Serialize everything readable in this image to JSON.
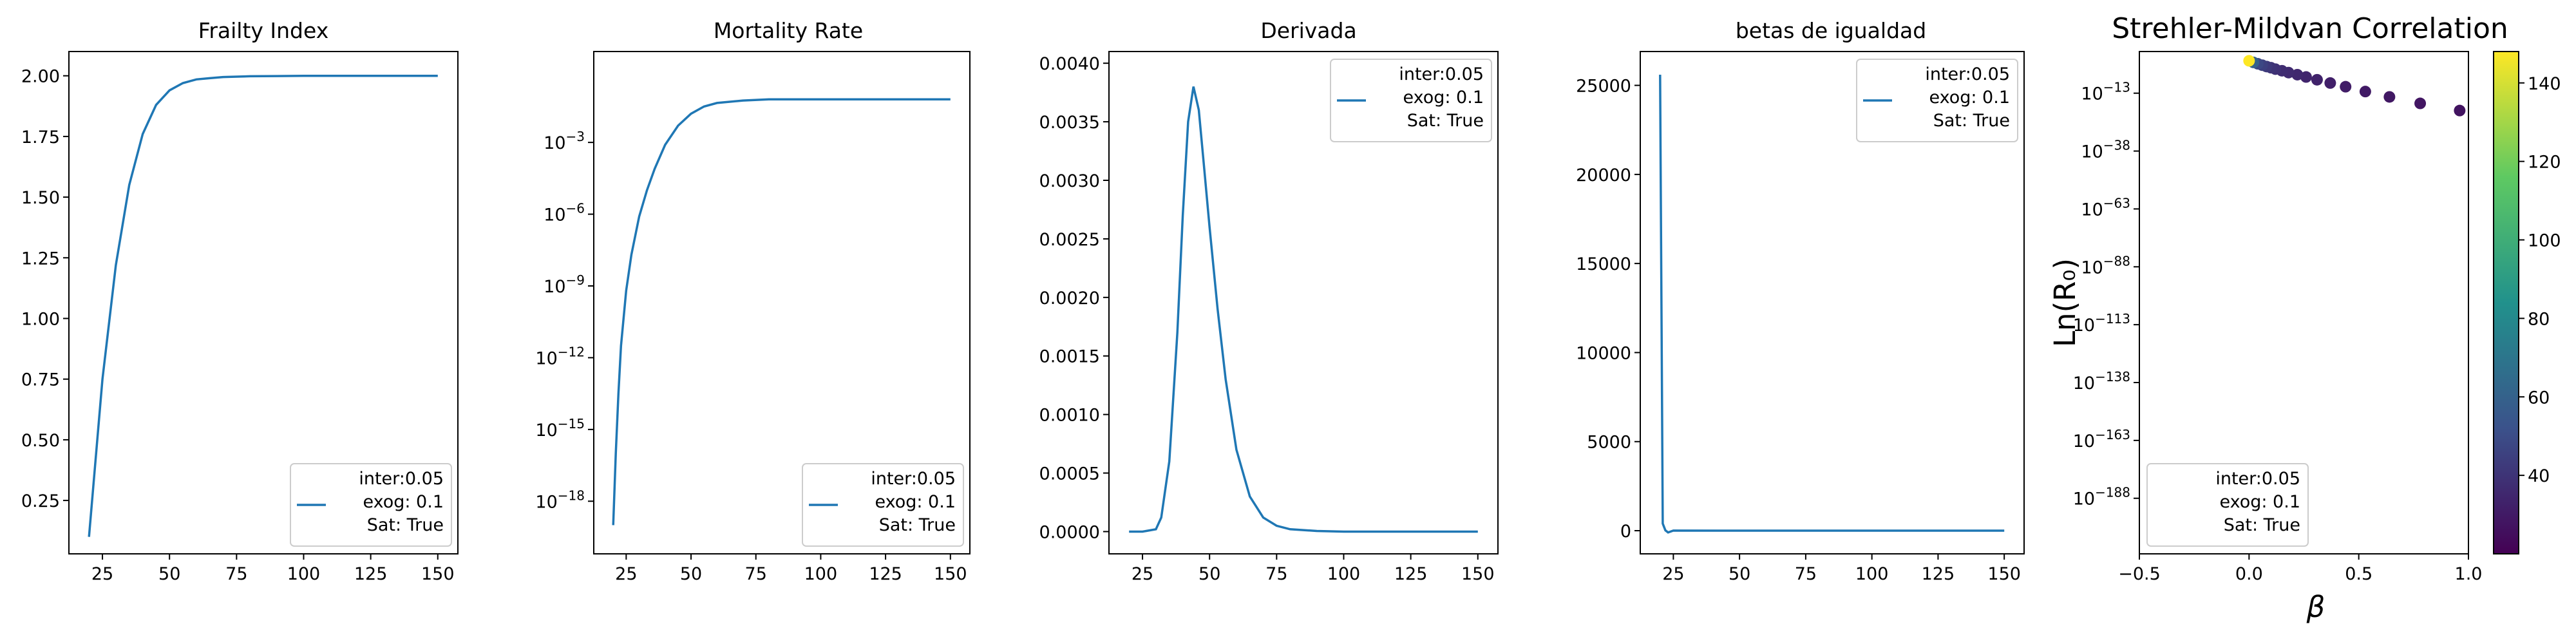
{
  "colors": {
    "line": "#1f77b4",
    "viridis": [
      "#440154",
      "#3b528b",
      "#21918c",
      "#5ec962",
      "#fde725"
    ]
  },
  "legend_lines": [
    "inter:0.05",
    "exog: 0.1",
    "Sat: True"
  ],
  "chart_data": [
    {
      "type": "line",
      "title": "Frailty Index",
      "xlim": [
        12.5,
        157.5
      ],
      "ylim": [
        0.03,
        2.1
      ],
      "xticks": [
        "25",
        "50",
        "75",
        "100",
        "125",
        "150"
      ],
      "yticks": [
        "0.25",
        "0.50",
        "0.75",
        "1.00",
        "1.25",
        "1.50",
        "1.75",
        "2.00"
      ],
      "legend_placement": "lower right",
      "series": [
        {
          "x": [
            20,
            25,
            30,
            35,
            40,
            45,
            50,
            55,
            60,
            65,
            70,
            80,
            90,
            100,
            125,
            150
          ],
          "values": [
            0.1,
            0.75,
            1.22,
            1.55,
            1.76,
            1.88,
            1.94,
            1.97,
            1.985,
            1.99,
            1.995,
            1.998,
            1.999,
            2.0,
            2.0,
            2.0
          ]
        }
      ]
    },
    {
      "type": "line",
      "title": "Mortality Rate",
      "scale_y": "log",
      "xlim": [
        12.5,
        157.5
      ],
      "ylim_exp": [
        -20.2,
        0.8
      ],
      "xticks": [
        "25",
        "50",
        "75",
        "100",
        "125",
        "150"
      ],
      "yticks_exp": [
        "-18",
        "-15",
        "-12",
        "-9",
        "-6",
        "-3"
      ],
      "legend_placement": "lower right",
      "series": [
        {
          "x": [
            20,
            21,
            22,
            23,
            25,
            27,
            30,
            33,
            36,
            40,
            45,
            50,
            55,
            60,
            70,
            80,
            100,
            150
          ],
          "log10_values": [
            -19.0,
            -16.0,
            -13.5,
            -11.5,
            -9.2,
            -7.7,
            -6.1,
            -5.0,
            -4.1,
            -3.1,
            -2.3,
            -1.8,
            -1.5,
            -1.35,
            -1.25,
            -1.2,
            -1.2,
            -1.2
          ]
        }
      ]
    },
    {
      "type": "line",
      "title": "Derivada",
      "xlim": [
        12.5,
        157.5
      ],
      "ylim": [
        -0.00019,
        0.0041
      ],
      "xticks": [
        "25",
        "50",
        "75",
        "100",
        "125",
        "150"
      ],
      "yticks": [
        "0.0000",
        "0.0005",
        "0.0010",
        "0.0015",
        "0.0020",
        "0.0025",
        "0.0030",
        "0.0035",
        "0.0040"
      ],
      "legend_placement": "upper right",
      "series": [
        {
          "x": [
            20,
            25,
            30,
            32,
            35,
            38,
            40,
            42,
            44,
            46,
            48,
            50,
            53,
            56,
            60,
            65,
            70,
            75,
            80,
            90,
            100,
            110,
            125,
            150
          ],
          "values": [
            0.0,
            0.0,
            2e-05,
            0.00012,
            0.0006,
            0.0017,
            0.0027,
            0.0035,
            0.0038,
            0.0036,
            0.0031,
            0.0026,
            0.0019,
            0.0013,
            0.0007,
            0.0003,
            0.00012,
            5e-05,
            2e-05,
            5e-06,
            0.0,
            0.0,
            0.0,
            0.0
          ]
        }
      ]
    },
    {
      "type": "line",
      "title": "betas de igualdad",
      "xlim": [
        12.5,
        157.5
      ],
      "ylim": [
        -1300,
        26900
      ],
      "xticks": [
        "25",
        "50",
        "75",
        "100",
        "125",
        "150"
      ],
      "yticks": [
        "0",
        "5000",
        "10000",
        "15000",
        "20000",
        "25000"
      ],
      "legend_placement": "upper right",
      "series": [
        {
          "x": [
            20,
            21,
            22,
            23,
            25,
            50,
            100,
            150
          ],
          "values": [
            25600,
            400,
            20,
            -100,
            5,
            2,
            1,
            0
          ]
        }
      ]
    },
    {
      "type": "scatter",
      "title": "Strehler-Mildvan Correlation",
      "xlabel": "β",
      "ylabel": "Ln(R₀)",
      "scale_y": "log",
      "xlim": [
        -0.5,
        1.0
      ],
      "ylim_exp": [
        -212,
        5
      ],
      "xticks": [
        "−0.5",
        "0.0",
        "0.5",
        "1.0"
      ],
      "yticks_exp": [
        "-13",
        "-38",
        "-63",
        "-88",
        "-113",
        "-138",
        "-163",
        "-188"
      ],
      "colorbar": {
        "range": [
          20,
          148
        ],
        "ticks": [
          "40",
          "60",
          "80",
          "100",
          "120",
          "140"
        ]
      },
      "legend_placement": "lower left",
      "points": [
        {
          "x": 0.0,
          "log10_y": 1.0,
          "c": 148
        },
        {
          "x": 0.02,
          "log10_y": 0.3,
          "c": 60
        },
        {
          "x": 0.04,
          "log10_y": -0.3,
          "c": 48
        },
        {
          "x": 0.06,
          "log10_y": -0.9,
          "c": 45
        },
        {
          "x": 0.08,
          "log10_y": -1.5,
          "c": 42
        },
        {
          "x": 0.1,
          "log10_y": -2.0,
          "c": 40
        },
        {
          "x": 0.12,
          "log10_y": -2.6,
          "c": 39
        },
        {
          "x": 0.15,
          "log10_y": -3.3,
          "c": 37
        },
        {
          "x": 0.18,
          "log10_y": -4.1,
          "c": 36
        },
        {
          "x": 0.22,
          "log10_y": -5.0,
          "c": 35
        },
        {
          "x": 0.26,
          "log10_y": -6.0,
          "c": 34
        },
        {
          "x": 0.31,
          "log10_y": -7.2,
          "c": 33
        },
        {
          "x": 0.37,
          "log10_y": -8.6,
          "c": 32
        },
        {
          "x": 0.44,
          "log10_y": -10.2,
          "c": 31
        },
        {
          "x": 0.53,
          "log10_y": -12.3,
          "c": 30
        },
        {
          "x": 0.64,
          "log10_y": -14.6,
          "c": 29
        },
        {
          "x": 0.78,
          "log10_y": -17.4,
          "c": 28
        },
        {
          "x": 0.96,
          "log10_y": -20.5,
          "c": 27
        }
      ]
    }
  ]
}
